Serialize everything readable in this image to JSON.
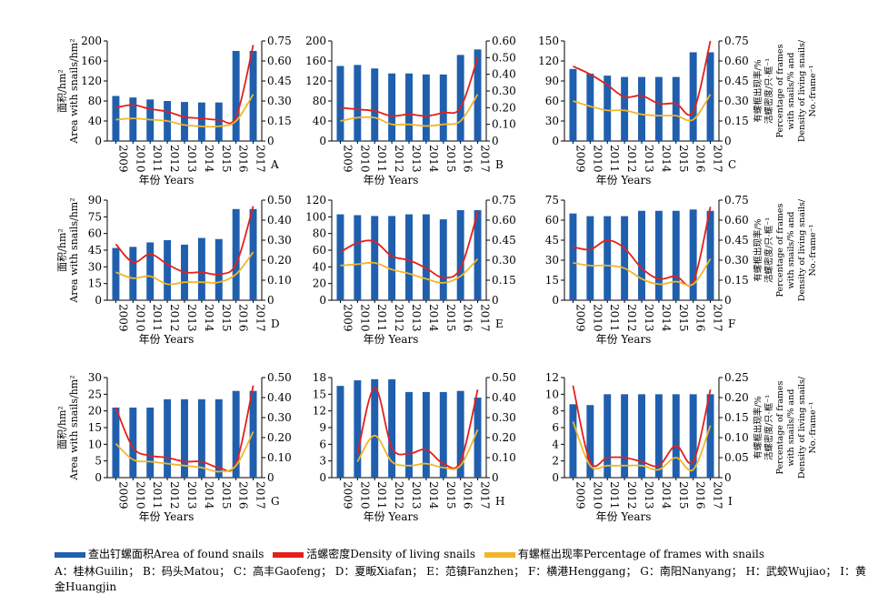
{
  "colors": {
    "bar": "#1f5fae",
    "density": "#e3201b",
    "percentage": "#f2b52a"
  },
  "legend": {
    "area": "查出钉螺面积Area of found snails",
    "density": "活螺密度Density of living snails",
    "percentage": "有螺框出现率Percentage of frames with snails"
  },
  "axis_text": {
    "xlabel": "年份 Years",
    "ylabel_cn": "面积/hm²",
    "ylabel_en": "Area with snails/hm²",
    "y2_line1": "有螺框出现率/%",
    "y2_line2": "活螺密度/只·框⁻¹",
    "y2_line3": "Percentage of frames",
    "y2_line4": "with snails/% and",
    "y2_line5": "Density of living snails/",
    "y2_line6": "No.·frame⁻¹"
  },
  "abbreviations": "A：桂林Guilin； B：码头Matou； C：高丰Gaofeng； D：夏畈Xiafan； E：范镇Fanzhen； F：横港Henggang； G：南阳Nanyang； H：武蛟Wujiao； I：黄金Huangjin",
  "chart_data": [
    {
      "type": "bar+line",
      "panel": "A",
      "categories": [
        "2009",
        "2010",
        "2011",
        "2012",
        "2013",
        "2014",
        "2015",
        "2016",
        "2017"
      ],
      "ylim": [
        0,
        200
      ],
      "yticks": [
        0,
        40,
        80,
        120,
        160,
        200
      ],
      "y2lim": [
        0,
        0.75
      ],
      "y2ticks": [
        "0",
        "0.15",
        "0.30",
        "0.45",
        "0.60",
        "0.75"
      ],
      "series": [
        {
          "name": "area",
          "kind": "bar",
          "axis": "left",
          "values": [
            90,
            87,
            83,
            80,
            78,
            77,
            77,
            180,
            180
          ]
        },
        {
          "name": "density",
          "kind": "line",
          "axis": "right",
          "values": [
            0.25,
            0.27,
            0.24,
            0.22,
            0.18,
            0.17,
            0.16,
            0.18,
            0.72
          ]
        },
        {
          "name": "percentage",
          "kind": "line",
          "axis": "right",
          "values": [
            0.16,
            0.17,
            0.16,
            0.15,
            0.12,
            0.11,
            0.11,
            0.15,
            0.35
          ]
        }
      ]
    },
    {
      "type": "bar+line",
      "panel": "B",
      "categories": [
        "2009",
        "2010",
        "2011",
        "2012",
        "2013",
        "2014",
        "2015",
        "2016",
        "2017"
      ],
      "ylim": [
        0,
        200
      ],
      "yticks": [
        0,
        40,
        80,
        120,
        160,
        200
      ],
      "y2lim": [
        0,
        0.6
      ],
      "y2ticks": [
        "0",
        "0.10",
        "0.20",
        "0.30",
        "0.40",
        "0.50",
        "0.60"
      ],
      "series": [
        {
          "name": "area",
          "kind": "bar",
          "axis": "left",
          "values": [
            150,
            152,
            145,
            135,
            135,
            133,
            133,
            172,
            183
          ]
        },
        {
          "name": "density",
          "kind": "line",
          "axis": "right",
          "values": [
            0.2,
            0.19,
            0.18,
            0.15,
            0.16,
            0.15,
            0.17,
            0.2,
            0.5
          ]
        },
        {
          "name": "percentage",
          "kind": "line",
          "axis": "right",
          "values": [
            0.12,
            0.14,
            0.14,
            0.1,
            0.1,
            0.09,
            0.1,
            0.12,
            0.28
          ]
        }
      ]
    },
    {
      "type": "bar+line",
      "panel": "C",
      "categories": [
        "2009",
        "2010",
        "2011",
        "2012",
        "2013",
        "2014",
        "2015",
        "2016",
        "2017"
      ],
      "ylim": [
        0,
        150
      ],
      "yticks": [
        0,
        30,
        60,
        90,
        120,
        150
      ],
      "y2lim": [
        0,
        0.75
      ],
      "y2ticks": [
        "0",
        "0.15",
        "0.30",
        "0.45",
        "0.60",
        "0.75"
      ],
      "series": [
        {
          "name": "area",
          "kind": "bar",
          "axis": "left",
          "values": [
            108,
            101,
            98,
            96,
            96,
            96,
            96,
            133,
            133
          ]
        },
        {
          "name": "density",
          "kind": "line",
          "axis": "right",
          "values": [
            0.56,
            0.5,
            0.42,
            0.33,
            0.34,
            0.28,
            0.28,
            0.22,
            0.75
          ]
        },
        {
          "name": "percentage",
          "kind": "line",
          "axis": "right",
          "values": [
            0.3,
            0.26,
            0.23,
            0.23,
            0.2,
            0.19,
            0.19,
            0.16,
            0.35
          ]
        }
      ]
    },
    {
      "type": "bar+line",
      "panel": "D",
      "categories": [
        "2009",
        "2010",
        "2011",
        "2012",
        "2013",
        "2014",
        "2015",
        "2016",
        "2017"
      ],
      "ylim": [
        0,
        90
      ],
      "yticks": [
        0,
        15,
        30,
        45,
        60,
        75,
        90
      ],
      "y2lim": [
        0,
        0.5
      ],
      "y2ticks": [
        "0",
        "0.10",
        "0.20",
        "0.30",
        "0.40",
        "0.50"
      ],
      "series": [
        {
          "name": "area",
          "kind": "bar",
          "axis": "left",
          "values": [
            47,
            48,
            52,
            54,
            50,
            56,
            55,
            82,
            82
          ]
        },
        {
          "name": "density",
          "kind": "line",
          "axis": "right",
          "values": [
            0.28,
            0.19,
            0.23,
            0.18,
            0.14,
            0.14,
            0.13,
            0.18,
            0.47
          ]
        },
        {
          "name": "percentage",
          "kind": "line",
          "axis": "right",
          "values": [
            0.14,
            0.11,
            0.12,
            0.08,
            0.09,
            0.09,
            0.09,
            0.13,
            0.24
          ]
        }
      ]
    },
    {
      "type": "bar+line",
      "panel": "E",
      "categories": [
        "2009",
        "2010",
        "2011",
        "2012",
        "2013",
        "2014",
        "2015",
        "2016",
        "2017"
      ],
      "ylim": [
        0,
        120
      ],
      "yticks": [
        0,
        20,
        40,
        60,
        80,
        100,
        120
      ],
      "y2lim": [
        0,
        0.75
      ],
      "y2ticks": [
        "0",
        "0.15",
        "0.30",
        "0.45",
        "0.60",
        "0.75"
      ],
      "series": [
        {
          "name": "area",
          "kind": "bar",
          "axis": "left",
          "values": [
            103,
            102,
            101,
            101,
            103,
            103,
            97,
            108,
            108
          ]
        },
        {
          "name": "density",
          "kind": "line",
          "axis": "right",
          "values": [
            0.36,
            0.43,
            0.44,
            0.33,
            0.3,
            0.24,
            0.17,
            0.24,
            0.66
          ]
        },
        {
          "name": "percentage",
          "kind": "line",
          "axis": "right",
          "values": [
            0.26,
            0.27,
            0.28,
            0.23,
            0.2,
            0.16,
            0.13,
            0.18,
            0.31
          ]
        }
      ]
    },
    {
      "type": "bar+line",
      "panel": "F",
      "categories": [
        "2009",
        "2010",
        "2011",
        "2012",
        "2013",
        "2014",
        "2015",
        "2016",
        "2017"
      ],
      "ylim": [
        0,
        75
      ],
      "yticks": [
        0,
        15,
        30,
        45,
        60,
        75
      ],
      "y2lim": [
        0,
        0.75
      ],
      "y2ticks": [
        "0",
        "0.15",
        "0.30",
        "0.45",
        "0.60",
        "0.75"
      ],
      "series": [
        {
          "name": "area",
          "kind": "bar",
          "axis": "left",
          "values": [
            65,
            63,
            63,
            63,
            67,
            67,
            67,
            68,
            67
          ]
        },
        {
          "name": "density",
          "kind": "line",
          "axis": "right",
          "values": [
            0.4,
            0.38,
            0.45,
            0.39,
            0.24,
            0.16,
            0.18,
            0.14,
            0.7
          ]
        },
        {
          "name": "percentage",
          "kind": "line",
          "axis": "right",
          "values": [
            0.28,
            0.26,
            0.26,
            0.24,
            0.16,
            0.12,
            0.14,
            0.12,
            0.31
          ]
        }
      ]
    },
    {
      "type": "bar+line",
      "panel": "G",
      "categories": [
        "2009",
        "2010",
        "2011",
        "2012",
        "2013",
        "2014",
        "2015",
        "2016",
        "2017"
      ],
      "ylim": [
        0,
        30
      ],
      "yticks": [
        0,
        5,
        10,
        15,
        20,
        25,
        30
      ],
      "y2lim": [
        0,
        0.5
      ],
      "y2ticks": [
        "0",
        "0.10",
        "0.20",
        "0.30",
        "0.40",
        "0.50"
      ],
      "series": [
        {
          "name": "area",
          "kind": "bar",
          "axis": "left",
          "values": [
            21,
            21,
            21,
            23.5,
            23.5,
            23.5,
            23.5,
            26,
            26
          ]
        },
        {
          "name": "density",
          "kind": "line",
          "axis": "right",
          "values": [
            0.35,
            0.15,
            0.11,
            0.1,
            0.08,
            0.08,
            0.05,
            0.07,
            0.46
          ]
        },
        {
          "name": "percentage",
          "kind": "line",
          "axis": "right",
          "values": [
            0.17,
            0.09,
            0.08,
            0.07,
            0.06,
            0.05,
            0.03,
            0.06,
            0.23
          ]
        }
      ]
    },
    {
      "type": "bar+line",
      "panel": "H",
      "categories": [
        "2009",
        "2010",
        "2011",
        "2012",
        "2013",
        "2014",
        "2015",
        "2016",
        "2017"
      ],
      "ylim": [
        0,
        18
      ],
      "yticks": [
        0,
        3,
        6,
        9,
        12,
        15,
        18
      ],
      "y2lim": [
        0,
        0.5
      ],
      "y2ticks": [
        "0",
        "0.10",
        "0.20",
        "0.30",
        "0.40",
        "0.50"
      ],
      "series": [
        {
          "name": "area",
          "kind": "bar",
          "axis": "left",
          "values": [
            16.5,
            17.5,
            17.7,
            17.7,
            15.4,
            15.4,
            15.4,
            15.6,
            14.4
          ]
        },
        {
          "name": "density",
          "kind": "line",
          "axis": "right",
          "values": [
            null,
            0.12,
            0.45,
            0.15,
            0.12,
            0.14,
            0.07,
            0.08,
            0.44
          ]
        },
        {
          "name": "percentage",
          "kind": "line",
          "axis": "right",
          "values": [
            null,
            0.08,
            0.21,
            0.08,
            0.06,
            0.07,
            0.05,
            0.06,
            0.24
          ]
        }
      ]
    },
    {
      "type": "bar+line",
      "panel": "I",
      "categories": [
        "2009",
        "2010",
        "2011",
        "2012",
        "2013",
        "2014",
        "2015",
        "2016",
        "2017"
      ],
      "ylim": [
        0,
        12
      ],
      "yticks": [
        0,
        2,
        4,
        6,
        8,
        10,
        12
      ],
      "y2lim": [
        0,
        0.25
      ],
      "y2ticks": [
        "0",
        "0.05",
        "0.10",
        "0.15",
        "0.20",
        "0.25"
      ],
      "series": [
        {
          "name": "area",
          "kind": "bar",
          "axis": "left",
          "values": [
            8.8,
            8.7,
            10,
            10,
            10,
            10,
            10,
            10,
            10
          ]
        },
        {
          "name": "density",
          "kind": "line",
          "axis": "right",
          "values": [
            0.23,
            0.04,
            0.05,
            0.05,
            0.04,
            0.03,
            0.08,
            0.04,
            0.22
          ]
        },
        {
          "name": "percentage",
          "kind": "line",
          "axis": "right",
          "values": [
            0.14,
            0.03,
            0.03,
            0.03,
            0.03,
            0.02,
            0.05,
            0.02,
            0.13
          ]
        }
      ]
    }
  ]
}
